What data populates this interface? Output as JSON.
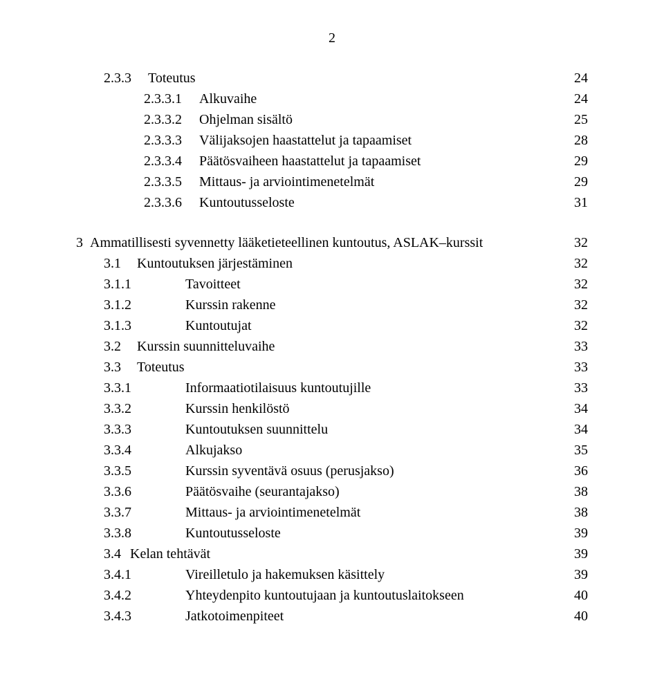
{
  "page_number": "2",
  "font_family": "Times New Roman",
  "font_size_pt": 15,
  "text_color": "#000000",
  "background_color": "#ffffff",
  "block1": [
    {
      "indent": "indent-1",
      "num": "2.3.3",
      "label": "Toteutus",
      "page": "24"
    },
    {
      "indent": "indent-2",
      "num": "2.3.3.1",
      "label": "Alkuvaihe",
      "page": "24"
    },
    {
      "indent": "indent-2",
      "num": "2.3.3.2",
      "label": "Ohjelman sisältö",
      "page": "25"
    },
    {
      "indent": "indent-2",
      "num": "2.3.3.3",
      "label": "Välijaksojen haastattelut ja tapaamiset",
      "page": "28"
    },
    {
      "indent": "indent-2",
      "num": "2.3.3.4",
      "label": "Päätösvaiheen haastattelut ja tapaamiset",
      "page": "29"
    },
    {
      "indent": "indent-2",
      "num": "2.3.3.5",
      "label": "Mittaus- ja arviointimenetelmät",
      "page": "29"
    },
    {
      "indent": "indent-2",
      "num": "2.3.3.6",
      "label": "Kuntoutusseloste",
      "page": "31"
    }
  ],
  "chapter": {
    "num": "3",
    "label": "Ammatillisesti syvennetty lääketieteellinen kuntoutus, ASLAK–kurssit",
    "page": "32"
  },
  "block2": [
    {
      "indent": "indent-1b",
      "num": "3.1",
      "label": "Kuntoutuksen järjestäminen",
      "page": "32"
    },
    {
      "indent": "indent-1c",
      "num": "3.1.1",
      "label": "Tavoitteet",
      "page": "32"
    },
    {
      "indent": "indent-1c",
      "num": "3.1.2",
      "label": "Kurssin rakenne",
      "page": "32"
    },
    {
      "indent": "indent-1c",
      "num": "3.1.3",
      "label": "Kuntoutujat",
      "page": "32"
    },
    {
      "indent": "indent-1b",
      "num": "3.2",
      "label": "Kurssin suunnitteluvaihe",
      "page": "33"
    },
    {
      "indent": "indent-1b",
      "num": "3.3",
      "label": "Toteutus",
      "page": "33"
    },
    {
      "indent": "indent-1c",
      "num": "3.3.1",
      "label": "Informaatiotilaisuus kuntoutujille",
      "page": "33"
    },
    {
      "indent": "indent-1c",
      "num": "3.3.2",
      "label": "Kurssin henkilöstö",
      "page": "34"
    },
    {
      "indent": "indent-1c",
      "num": "3.3.3",
      "label": "Kuntoutuksen suunnittelu",
      "page": "34"
    },
    {
      "indent": "indent-1c",
      "num": "3.3.4",
      "label": "Alkujakso",
      "page": "35"
    },
    {
      "indent": "indent-1c",
      "num": "3.3.5",
      "label": "Kurssin syventävä osuus (perusjakso)",
      "page": "36"
    },
    {
      "indent": "indent-1c",
      "num": "3.3.6",
      "label": "Päätösvaihe (seurantajakso)",
      "page": "38"
    },
    {
      "indent": "indent-1c",
      "num": "3.3.7",
      "label": "Mittaus- ja arviointimenetelmät",
      "page": "38"
    },
    {
      "indent": "indent-1c",
      "num": "3.3.8",
      "label": "Kuntoutusseloste",
      "page": "39"
    },
    {
      "indent": "indent-1b",
      "num": "3.4",
      "label": "Kelan tehtävät",
      "page": "39",
      "nospace": true
    },
    {
      "indent": "indent-1c",
      "num": "3.4.1",
      "label": "Vireilletulo ja hakemuksen käsittely",
      "page": "39"
    },
    {
      "indent": "indent-1c",
      "num": "3.4.2",
      "label": "Yhteydenpito kuntoutujaan ja kuntoutuslaitokseen",
      "page": "40"
    },
    {
      "indent": "indent-1c",
      "num": "3.4.3",
      "label": "Jatkotoimenpiteet",
      "page": "40"
    }
  ]
}
